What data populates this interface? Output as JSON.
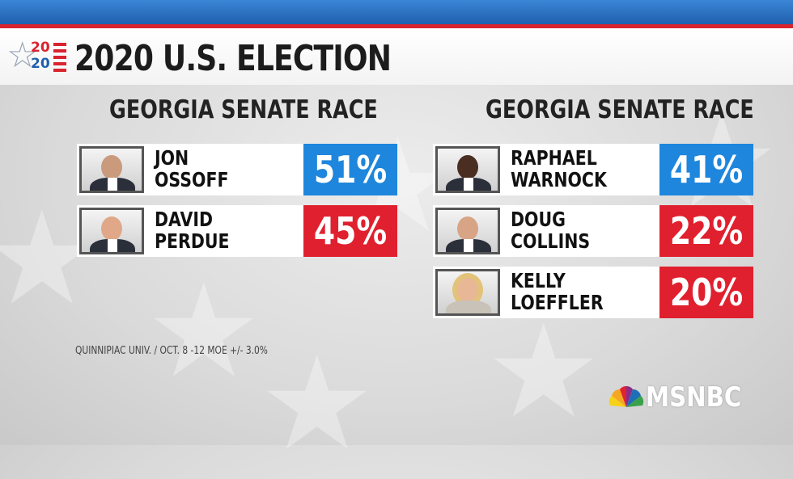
{
  "header": {
    "logo_year_top": "20",
    "logo_year_bottom": "20",
    "title": "2020 U.S. ELECTION"
  },
  "races": [
    {
      "title": "GEORGIA SENATE RACE",
      "candidates": [
        {
          "first": "JON",
          "last": "OSSOFF",
          "percent": "51%",
          "party_color": "#1e86dc"
        },
        {
          "first": "DAVID",
          "last": "PERDUE",
          "percent": "45%",
          "party_color": "#e0202e"
        }
      ]
    },
    {
      "title": "GEORGIA SENATE RACE",
      "candidates": [
        {
          "first": "RAPHAEL",
          "last": "WARNOCK",
          "percent": "41%",
          "party_color": "#1e86dc"
        },
        {
          "first": "DOUG",
          "last": "COLLINS",
          "percent": "22%",
          "party_color": "#e0202e"
        },
        {
          "first": "KELLY",
          "last": "LOEFFLER",
          "percent": "20%",
          "party_color": "#e0202e"
        }
      ]
    }
  ],
  "source": "QUINNIPIAC UNIV. / OCT. 8 -12 MOE +/- 3.0%",
  "network": {
    "name": "MSNBC",
    "icon": "peacock-icon"
  },
  "colors": {
    "democrat": "#1e86dc",
    "republican": "#e0202e",
    "accent_bar": "#2f76c8"
  }
}
